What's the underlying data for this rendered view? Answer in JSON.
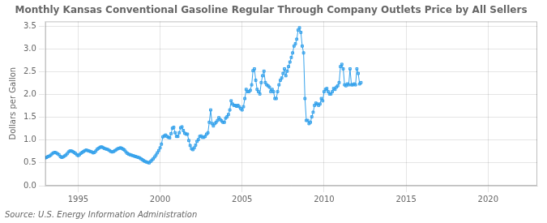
{
  "chart_data": {
    "type": "line",
    "title": "Monthly Kansas Conventional Gasoline Regular Through Company Outlets Price by All Sellers",
    "ylabel": "Dollars per Gallon",
    "annotations": [
      "Source: U.S. Energy Information Administration"
    ],
    "xlim": [
      1993.0,
      2023.0
    ],
    "ylim": [
      0.0,
      3.6
    ],
    "xticks": [
      1995,
      2000,
      2005,
      2010,
      2015,
      2020
    ],
    "yticks": [
      {
        "value": 0.0,
        "label": "0.0"
      },
      0.5,
      {
        "value": 1.0,
        "label": "1.0"
      },
      1.5,
      {
        "value": 2.0,
        "label": "2.0"
      },
      2.5,
      {
        "value": 3.0,
        "label": "3.0"
      },
      3.5
    ],
    "grid": true,
    "marker": "square",
    "x": [
      1993.0,
      1993.083,
      1993.167,
      1993.25,
      1993.333,
      1993.417,
      1993.5,
      1993.583,
      1993.667,
      1993.75,
      1993.833,
      1993.917,
      1994.0,
      1994.083,
      1994.167,
      1994.25,
      1994.333,
      1994.417,
      1994.5,
      1994.583,
      1994.667,
      1994.75,
      1994.833,
      1994.917,
      1995.0,
      1995.083,
      1995.167,
      1995.25,
      1995.333,
      1995.417,
      1995.5,
      1995.583,
      1995.667,
      1995.75,
      1995.833,
      1995.917,
      1996.0,
      1996.083,
      1996.167,
      1996.25,
      1996.333,
      1996.417,
      1996.5,
      1996.583,
      1996.667,
      1996.75,
      1996.833,
      1996.917,
      1997.0,
      1997.083,
      1997.167,
      1997.25,
      1997.333,
      1997.417,
      1997.5,
      1997.583,
      1997.667,
      1997.75,
      1997.833,
      1997.917,
      1998.0,
      1998.083,
      1998.167,
      1998.25,
      1998.333,
      1998.417,
      1998.5,
      1998.583,
      1998.667,
      1998.75,
      1998.833,
      1998.917,
      1999.0,
      1999.083,
      1999.167,
      1999.25,
      1999.333,
      1999.417,
      1999.5,
      1999.583,
      1999.667,
      1999.75,
      1999.833,
      1999.917,
      2000.0,
      2000.083,
      2000.167,
      2000.25,
      2000.333,
      2000.417,
      2000.5,
      2000.583,
      2000.667,
      2000.75,
      2000.833,
      2000.917,
      2001.0,
      2001.083,
      2001.167,
      2001.25,
      2001.333,
      2001.417,
      2001.5,
      2001.583,
      2001.667,
      2001.75,
      2001.833,
      2001.917,
      2002.0,
      2002.083,
      2002.167,
      2002.25,
      2002.333,
      2002.417,
      2002.5,
      2002.583,
      2002.667,
      2002.75,
      2002.833,
      2002.917,
      2003.0,
      2003.083,
      2003.167,
      2003.25,
      2003.333,
      2003.417,
      2003.5,
      2003.583,
      2003.667,
      2003.75,
      2003.833,
      2003.917,
      2004.0,
      2004.083,
      2004.167,
      2004.25,
      2004.333,
      2004.417,
      2004.5,
      2004.583,
      2004.667,
      2004.75,
      2004.833,
      2004.917,
      2005.0,
      2005.083,
      2005.167,
      2005.25,
      2005.333,
      2005.417,
      2005.5,
      2005.583,
      2005.667,
      2005.75,
      2005.833,
      2005.917,
      2006.0,
      2006.083,
      2006.167,
      2006.25,
      2006.333,
      2006.417,
      2006.5,
      2006.583,
      2006.667,
      2006.75,
      2006.833,
      2006.917,
      2007.0,
      2007.083,
      2007.167,
      2007.25,
      2007.333,
      2007.417,
      2007.5,
      2007.583,
      2007.667,
      2007.75,
      2007.833,
      2007.917,
      2008.0,
      2008.083,
      2008.167,
      2008.25,
      2008.333,
      2008.417,
      2008.5,
      2008.583,
      2008.667,
      2008.75,
      2008.833,
      2008.917,
      2009.0,
      2009.083,
      2009.167,
      2009.25,
      2009.333,
      2009.417,
      2009.5,
      2009.583,
      2009.667,
      2009.75,
      2009.833,
      2009.917,
      2010.0,
      2010.083,
      2010.167,
      2010.25,
      2010.333,
      2010.417,
      2010.5,
      2010.583,
      2010.667,
      2010.75,
      2010.833,
      2010.917,
      2011.0,
      2011.083,
      2011.167,
      2011.25,
      2011.333,
      2011.417,
      2011.5,
      2011.583,
      2011.667,
      2011.75,
      2011.833,
      2011.917,
      2012.0,
      2012.083,
      2012.167,
      2012.25
    ],
    "values": [
      0.61,
      0.62,
      0.64,
      0.65,
      0.67,
      0.7,
      0.72,
      0.73,
      0.72,
      0.7,
      0.68,
      0.64,
      0.62,
      0.63,
      0.65,
      0.67,
      0.7,
      0.74,
      0.76,
      0.76,
      0.75,
      0.73,
      0.71,
      0.68,
      0.66,
      0.68,
      0.71,
      0.73,
      0.75,
      0.77,
      0.78,
      0.77,
      0.76,
      0.75,
      0.74,
      0.72,
      0.73,
      0.76,
      0.8,
      0.82,
      0.84,
      0.85,
      0.84,
      0.82,
      0.81,
      0.8,
      0.79,
      0.77,
      0.75,
      0.74,
      0.75,
      0.77,
      0.79,
      0.81,
      0.82,
      0.83,
      0.82,
      0.8,
      0.78,
      0.74,
      0.71,
      0.69,
      0.68,
      0.67,
      0.66,
      0.65,
      0.64,
      0.63,
      0.62,
      0.61,
      0.59,
      0.57,
      0.55,
      0.53,
      0.52,
      0.51,
      0.5,
      0.53,
      0.56,
      0.59,
      0.63,
      0.67,
      0.72,
      0.77,
      0.83,
      0.91,
      1.07,
      1.09,
      1.11,
      1.08,
      1.06,
      1.05,
      1.14,
      1.26,
      1.28,
      1.16,
      1.08,
      1.08,
      1.16,
      1.27,
      1.29,
      1.21,
      1.15,
      1.13,
      1.13,
      0.99,
      0.88,
      0.81,
      0.79,
      0.83,
      0.89,
      0.97,
      1.01,
      1.08,
      1.09,
      1.06,
      1.06,
      1.08,
      1.13,
      1.16,
      1.39,
      1.66,
      1.36,
      1.31,
      1.36,
      1.39,
      1.43,
      1.49,
      1.45,
      1.42,
      1.39,
      1.39,
      1.48,
      1.51,
      1.56,
      1.66,
      1.86,
      1.79,
      1.76,
      1.76,
      1.74,
      1.76,
      1.73,
      1.69,
      1.66,
      1.73,
      1.91,
      2.11,
      2.06,
      2.06,
      2.09,
      2.21,
      2.52,
      2.56,
      2.31,
      2.11,
      2.06,
      2.01,
      2.26,
      2.41,
      2.51,
      2.26,
      2.21,
      2.19,
      2.16,
      2.06,
      2.11,
      2.06,
      1.91,
      1.91,
      2.06,
      2.21,
      2.31,
      2.36,
      2.46,
      2.56,
      2.41,
      2.51,
      2.61,
      2.71,
      2.81,
      2.91,
      3.06,
      3.11,
      3.21,
      3.41,
      3.46,
      3.36,
      3.06,
      2.91,
      1.91,
      1.43,
      1.43,
      1.36,
      1.39,
      1.51,
      1.61,
      1.76,
      1.81,
      1.79,
      1.76,
      1.79,
      1.91,
      1.86,
      2.06,
      2.11,
      2.13,
      2.06,
      2.01,
      2.01,
      2.06,
      2.13,
      2.11,
      2.16,
      2.19,
      2.26,
      2.61,
      2.66,
      2.56,
      2.21,
      2.19,
      2.23,
      2.21,
      2.56,
      2.21,
      2.21,
      2.23,
      2.21,
      2.56,
      2.46,
      2.23,
      2.26
    ]
  }
}
